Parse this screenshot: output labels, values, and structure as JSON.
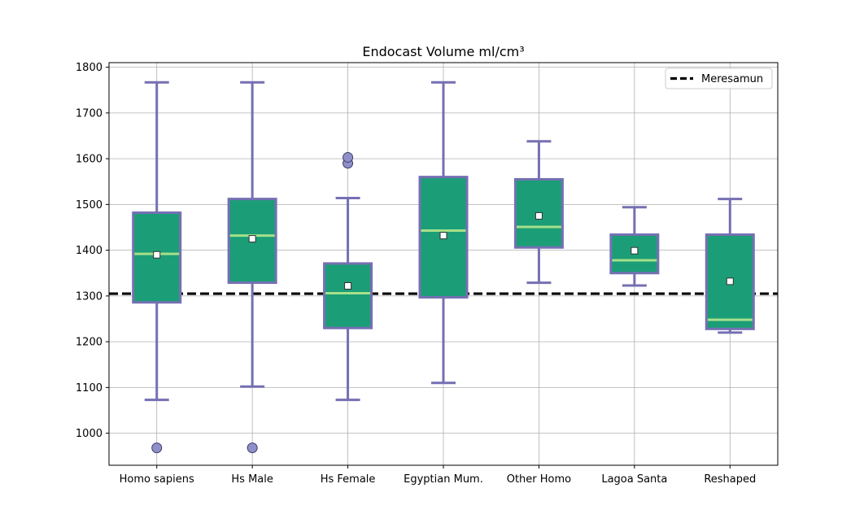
{
  "chart_data": {
    "type": "box",
    "title": "Endocast Volume ml/cm³",
    "xlabel": "",
    "ylabel": "",
    "ylim": [
      930,
      1810
    ],
    "yticks": [
      1000,
      1100,
      1200,
      1300,
      1400,
      1500,
      1600,
      1700,
      1800
    ],
    "grid": true,
    "legend_position": "top-right",
    "reference_line": {
      "name": "Meresamun",
      "value": 1305,
      "style": "dashed",
      "color": "#000000"
    },
    "colors": {
      "box_fill": "#1b9e77",
      "box_edge": "#7570b3",
      "whisker": "#7570b3",
      "median": "#a6e08a",
      "mean_marker_fill": "#ffffff",
      "flier_fill": "#8f8fc9",
      "grid": "#b0b0b0"
    },
    "categories": [
      "Homo sapiens",
      "Hs Male",
      "Hs Female",
      "Egyptian Mum.",
      "Other Homo",
      "Lagoa Santa",
      "Reshaped"
    ],
    "boxes": [
      {
        "label": "Homo sapiens",
        "whisker_low": 1073,
        "q1": 1286,
        "median": 1392,
        "q3": 1482,
        "whisker_high": 1767,
        "mean": 1390,
        "fliers": [
          968
        ]
      },
      {
        "label": "Hs Male",
        "whisker_low": 1102,
        "q1": 1329,
        "median": 1432,
        "q3": 1512,
        "whisker_high": 1767,
        "mean": 1425,
        "fliers": [
          968
        ]
      },
      {
        "label": "Hs Female",
        "whisker_low": 1073,
        "q1": 1230,
        "median": 1306,
        "q3": 1371,
        "whisker_high": 1514,
        "mean": 1322,
        "fliers": [
          1590,
          1603
        ]
      },
      {
        "label": "Egyptian Mum.",
        "whisker_low": 1110,
        "q1": 1297,
        "median": 1443,
        "q3": 1560,
        "whisker_high": 1767,
        "mean": 1432,
        "fliers": []
      },
      {
        "label": "Other Homo",
        "whisker_low": 1329,
        "q1": 1406,
        "median": 1451,
        "q3": 1555,
        "whisker_high": 1638,
        "mean": 1475,
        "fliers": []
      },
      {
        "label": "Lagoa Santa",
        "whisker_low": 1323,
        "q1": 1350,
        "median": 1378,
        "q3": 1434,
        "whisker_high": 1494,
        "mean": 1399,
        "fliers": []
      },
      {
        "label": "Reshaped",
        "whisker_low": 1220,
        "q1": 1228,
        "median": 1248,
        "q3": 1434,
        "whisker_high": 1512,
        "mean": 1332,
        "fliers": []
      }
    ]
  }
}
